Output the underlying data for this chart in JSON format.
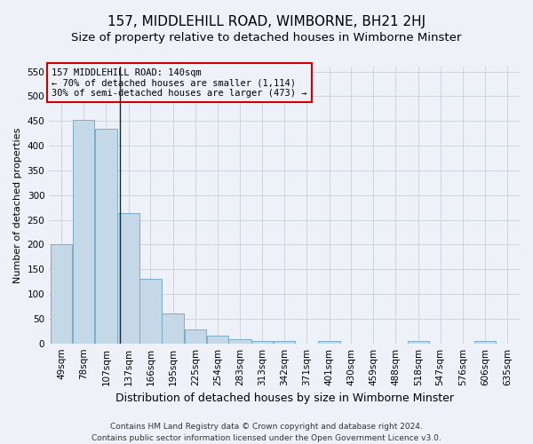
{
  "title": "157, MIDDLEHILL ROAD, WIMBORNE, BH21 2HJ",
  "subtitle": "Size of property relative to detached houses in Wimborne Minster",
  "xlabel": "Distribution of detached houses by size in Wimborne Minster",
  "ylabel": "Number of detached properties",
  "footer1": "Contains HM Land Registry data © Crown copyright and database right 2024.",
  "footer2": "Contains public sector information licensed under the Open Government Licence v3.0.",
  "annotation_line1": "157 MIDDLEHILL ROAD: 140sqm",
  "annotation_line2": "← 70% of detached houses are smaller (1,114)",
  "annotation_line3": "30% of semi-detached houses are larger (473) →",
  "bar_edges": [
    49,
    78,
    107,
    137,
    166,
    195,
    225,
    254,
    283,
    313,
    342,
    371,
    401,
    430,
    459,
    488,
    518,
    547,
    576,
    606,
    635
  ],
  "bar_heights": [
    200,
    452,
    435,
    263,
    130,
    60,
    28,
    15,
    8,
    5,
    5,
    0,
    5,
    0,
    0,
    0,
    5,
    0,
    0,
    5,
    0
  ],
  "bar_color": "#c5d8e8",
  "bar_edge_color": "#7aadc8",
  "property_size": 140,
  "vline_color": "#222222",
  "grid_color": "#c8d0dc",
  "background_color": "#eef2f8",
  "ylim": [
    0,
    560
  ],
  "yticks": [
    0,
    50,
    100,
    150,
    200,
    250,
    300,
    350,
    400,
    450,
    500,
    550
  ],
  "annotation_box_color": "#cc0000",
  "title_fontsize": 11,
  "subtitle_fontsize": 9.5,
  "xlabel_fontsize": 9,
  "ylabel_fontsize": 8,
  "tick_fontsize": 7.5,
  "footer_fontsize": 6.5,
  "ann_fontsize": 7.5
}
